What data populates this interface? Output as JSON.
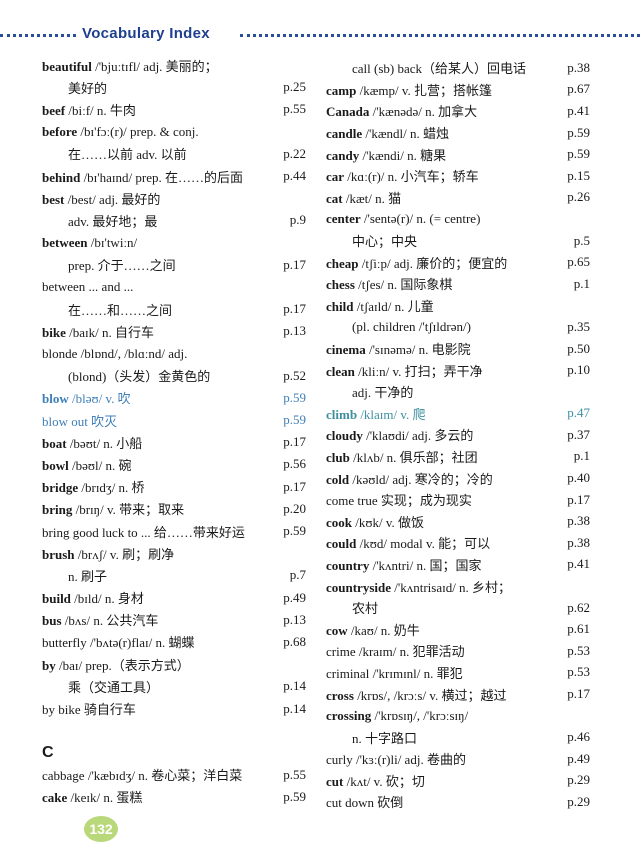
{
  "header": {
    "title": "Vocabulary Index"
  },
  "columns": [
    {
      "lines": [
        {
          "head": "beautiful",
          "text": " /'bjuːtɪfl/ adj. 美丽的；"
        },
        {
          "cont": "美好的",
          "page": "p.25"
        },
        {
          "head": "beef",
          "text": " /biːf/ n. 牛肉",
          "page": "p.55"
        },
        {
          "head": "before",
          "text": " /bɪ'fɔː(r)/ prep. & conj."
        },
        {
          "cont": "在……以前 adv. 以前",
          "page": "p.22"
        },
        {
          "head": "behind",
          "text": " /bɪ'haɪnd/ prep. 在……的后面",
          "page": "p.44"
        },
        {
          "head": "best",
          "text": " /best/ adj. 最好的"
        },
        {
          "cont": "adv. 最好地；最",
          "page": "p.9"
        },
        {
          "head": "between",
          "text": " /bɪ'twiːn/"
        },
        {
          "cont": "prep. 介于……之间",
          "page": "p.17"
        },
        {
          "text": "between ... and ..."
        },
        {
          "cont": "在……和……之间",
          "page": "p.17"
        },
        {
          "head": "bike",
          "text": " /baɪk/ n. 自行车",
          "page": "p.13"
        },
        {
          "text": "blonde /blɒnd/, /blɑːnd/ adj."
        },
        {
          "cont": "(blond)（头发）金黄色的",
          "page": "p.52"
        },
        {
          "head": "blow",
          "text": " /bləʊ/ v. 吹",
          "page": "p.59",
          "color": "#3f7fb8"
        },
        {
          "text": "blow out 吹灭",
          "page": "p.59",
          "color": "#3f7fb8"
        },
        {
          "head": "boat",
          "text": " /bəʊt/ n. 小船",
          "page": "p.17"
        },
        {
          "head": "bowl",
          "text": " /bəʊl/ n. 碗",
          "page": "p.56"
        },
        {
          "head": "bridge",
          "text": " /brɪdʒ/ n. 桥",
          "page": "p.17"
        },
        {
          "head": "bring",
          "text": " /brɪŋ/ v. 带来；取来",
          "page": "p.20"
        },
        {
          "text": "bring good luck to ... 给……带来好运",
          "page": "p.59"
        },
        {
          "head": "brush",
          "text": " /brʌʃ/ v. 刷；刷净"
        },
        {
          "cont": "n. 刷子",
          "page": "p.7"
        },
        {
          "head": "build",
          "text": " /bɪld/ n. 身材",
          "page": "p.49"
        },
        {
          "head": "bus",
          "text": " /bʌs/ n. 公共汽车",
          "page": "p.13"
        },
        {
          "text": "butterfly /'bʌtə(r)flaɪ/ n. 蝴蝶",
          "page": "p.68"
        },
        {
          "head": "by",
          "text": " /baɪ/ prep.（表示方式）"
        },
        {
          "cont": "乘（交通工具）",
          "page": "p.14"
        },
        {
          "text": "by bike 骑自行车",
          "page": "p.14"
        },
        {
          "section": "C"
        },
        {
          "text": "cabbage /'kæbɪdʒ/ n. 卷心菜；洋白菜",
          "page": "p.55"
        },
        {
          "head": "cake",
          "text": " /keɪk/ n. 蛋糕",
          "page": "p.59"
        }
      ]
    },
    {
      "lines": [
        {
          "cont": "call (sb) back（给某人）回电话",
          "page": "p.38"
        },
        {
          "head": "camp",
          "text": " /kæmp/ v. 扎营；搭帐篷",
          "page": "p.67"
        },
        {
          "head": "Canada",
          "text": " /'kænədə/ n. 加拿大",
          "page": "p.41"
        },
        {
          "head": "candle",
          "text": " /'kændl/ n. 蜡烛",
          "page": "p.59"
        },
        {
          "head": "candy",
          "text": " /'kændi/ n. 糖果",
          "page": "p.59"
        },
        {
          "head": "car",
          "text": " /kɑː(r)/ n. 小汽车；轿车",
          "page": "p.15"
        },
        {
          "head": "cat",
          "text": " /kæt/ n. 猫",
          "page": "p.26"
        },
        {
          "head": "center",
          "text": " /'sentə(r)/ n. (= centre)"
        },
        {
          "cont": "中心；中央",
          "page": "p.5"
        },
        {
          "head": "cheap",
          "text": " /tʃiːp/ adj. 廉价的；便宜的",
          "page": "p.65"
        },
        {
          "head": "chess",
          "text": " /tʃes/ n. 国际象棋",
          "page": "p.1"
        },
        {
          "head": "child",
          "text": " /tʃaɪld/ n. 儿童"
        },
        {
          "cont": "(pl. children /'tʃɪldrən/)",
          "page": "p.35"
        },
        {
          "head": "cinema",
          "text": " /'sɪnəmə/ n. 电影院",
          "page": "p.50"
        },
        {
          "head": "clean",
          "text": " /kliːn/ v. 打扫；弄干净",
          "page": "p.10"
        },
        {
          "cont": "adj. 干净的"
        },
        {
          "head": "climb",
          "text": " /klaɪm/ v. 爬",
          "page": "p.47",
          "color": "#3f8fa0"
        },
        {
          "head": "cloudy",
          "text": " /'klaʊdi/ adj. 多云的",
          "page": "p.37"
        },
        {
          "head": "club",
          "text": " /klʌb/ n. 俱乐部；社团",
          "page": "p.1"
        },
        {
          "head": "cold",
          "text": " /kəʊld/ adj. 寒冷的；冷的",
          "page": "p.40"
        },
        {
          "text": "come true 实现；成为现实",
          "page": "p.17"
        },
        {
          "head": "cook",
          "text": " /kʊk/ v. 做饭",
          "page": "p.38"
        },
        {
          "head": "could",
          "text": " /kʊd/ modal v. 能；可以",
          "page": "p.38"
        },
        {
          "head": "country",
          "text": " /'kʌntri/ n. 国；国家",
          "page": "p.41"
        },
        {
          "head": "countryside",
          "text": " /'kʌntrisaɪd/ n. 乡村；"
        },
        {
          "cont": "农村",
          "page": "p.62"
        },
        {
          "head": "cow",
          "text": " /kaʊ/ n. 奶牛",
          "page": "p.61"
        },
        {
          "text": "crime /kraɪm/ n. 犯罪活动",
          "page": "p.53"
        },
        {
          "text": "criminal /'krɪmɪnl/ n. 罪犯",
          "page": "p.53"
        },
        {
          "head": "cross",
          "text": " /krɒs/, /krɔːs/ v. 横过；越过",
          "page": "p.17"
        },
        {
          "head": "crossing",
          "text": " /'krɒsɪŋ/, /'krɔːsɪŋ/"
        },
        {
          "cont": "n. 十字路口",
          "page": "p.46"
        },
        {
          "text": "curly /'kɜː(r)li/ adj. 卷曲的",
          "page": "p.49"
        },
        {
          "head": "cut",
          "text": " /kʌt/ v. 砍；切",
          "page": "p.29"
        },
        {
          "text": "cut down 砍倒",
          "page": "p.29"
        }
      ]
    }
  ],
  "footer": {
    "page_number": "132"
  }
}
